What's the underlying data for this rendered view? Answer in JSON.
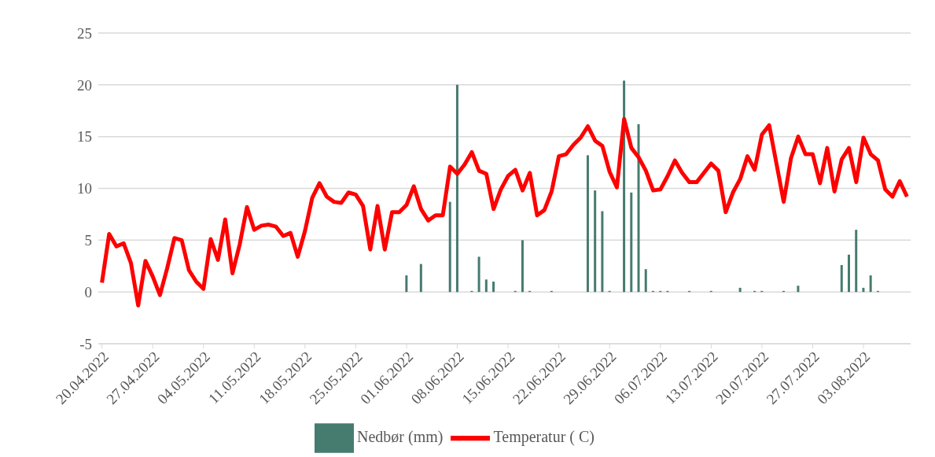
{
  "chart_data": {
    "type": "line",
    "x": [
      "2022-04-20",
      "2022-04-21",
      "2022-04-22",
      "2022-04-23",
      "2022-04-24",
      "2022-04-25",
      "2022-04-26",
      "2022-04-27",
      "2022-04-28",
      "2022-04-29",
      "2022-04-30",
      "2022-05-01",
      "2022-05-02",
      "2022-05-03",
      "2022-05-04",
      "2022-05-05",
      "2022-05-06",
      "2022-05-07",
      "2022-05-08",
      "2022-05-09",
      "2022-05-10",
      "2022-05-11",
      "2022-05-12",
      "2022-05-13",
      "2022-05-14",
      "2022-05-15",
      "2022-05-16",
      "2022-05-17",
      "2022-05-18",
      "2022-05-19",
      "2022-05-20",
      "2022-05-21",
      "2022-05-22",
      "2022-05-23",
      "2022-05-24",
      "2022-05-25",
      "2022-05-26",
      "2022-05-27",
      "2022-05-28",
      "2022-05-29",
      "2022-05-30",
      "2022-05-31",
      "2022-06-01",
      "2022-06-02",
      "2022-06-03",
      "2022-06-04",
      "2022-06-05",
      "2022-06-06",
      "2022-06-07",
      "2022-06-08",
      "2022-06-09",
      "2022-06-10",
      "2022-06-11",
      "2022-06-12",
      "2022-06-13",
      "2022-06-14",
      "2022-06-15",
      "2022-06-16",
      "2022-06-17",
      "2022-06-18",
      "2022-06-19",
      "2022-06-20",
      "2022-06-21",
      "2022-06-22",
      "2022-06-23",
      "2022-06-24",
      "2022-06-25",
      "2022-06-26",
      "2022-06-27",
      "2022-06-28",
      "2022-06-29",
      "2022-06-30",
      "2022-07-01",
      "2022-07-02",
      "2022-07-03",
      "2022-07-04",
      "2022-07-05",
      "2022-07-06",
      "2022-07-07",
      "2022-07-08",
      "2022-07-09",
      "2022-07-10",
      "2022-07-11",
      "2022-07-12",
      "2022-07-13",
      "2022-07-14",
      "2022-07-15",
      "2022-07-16",
      "2022-07-17",
      "2022-07-18",
      "2022-07-19",
      "2022-07-20",
      "2022-07-21",
      "2022-07-22",
      "2022-07-23",
      "2022-07-24",
      "2022-07-25",
      "2022-07-26",
      "2022-07-27",
      "2022-07-28",
      "2022-07-29",
      "2022-07-30",
      "2022-07-31",
      "2022-08-01",
      "2022-08-02",
      "2022-08-03",
      "2022-08-04",
      "2022-08-05",
      "2022-08-06",
      "2022-08-07",
      "2022-08-08",
      "2022-08-09"
    ],
    "series": [
      {
        "name": "Nedbør (mm)",
        "type": "bar",
        "color": "#467b70",
        "values": [
          0,
          0,
          0,
          0,
          0,
          0,
          0,
          0,
          0,
          0,
          0,
          0,
          0,
          0,
          0,
          0,
          0,
          0,
          0,
          0,
          0,
          0,
          0,
          0,
          0,
          0,
          0,
          0,
          0,
          0,
          0,
          0,
          0,
          0,
          0,
          0,
          0,
          0,
          0,
          0,
          0,
          0,
          1.6,
          0,
          2.7,
          0,
          0,
          0,
          8.7,
          20.0,
          0,
          0.1,
          3.4,
          1.2,
          1.0,
          0,
          0,
          0.1,
          5.0,
          0.1,
          0,
          0,
          0.1,
          0,
          0,
          0,
          0,
          13.2,
          9.8,
          7.8,
          0.1,
          0,
          20.4,
          9.6,
          16.2,
          2.2,
          0.1,
          0.1,
          0.1,
          0,
          0,
          0.1,
          0,
          0,
          0.1,
          0,
          0,
          0,
          0.4,
          0,
          0.1,
          0.1,
          0,
          0,
          0.1,
          0,
          0.6,
          0,
          0,
          0,
          0,
          0,
          2.6,
          3.6,
          6.0,
          0.4,
          1.6,
          0.1,
          0,
          0,
          0,
          0
        ]
      },
      {
        "name": "Temperatur ( C)",
        "color": "#ff0000",
        "values": [
          0.9,
          5.6,
          4.4,
          4.7,
          2.8,
          -1.3,
          3.0,
          1.5,
          -0.3,
          2.3,
          5.2,
          5.0,
          2.1,
          1.0,
          0.3,
          5.1,
          3.1,
          7.0,
          1.8,
          4.6,
          8.2,
          6.0,
          6.4,
          6.5,
          6.3,
          5.4,
          5.7,
          3.4,
          5.9,
          9.1,
          10.5,
          9.2,
          8.7,
          8.6,
          9.6,
          9.4,
          8.3,
          4.1,
          8.3,
          4.1,
          7.7,
          7.7,
          8.4,
          10.2,
          8.0,
          6.9,
          7.4,
          7.4,
          12.1,
          11.4,
          12.3,
          13.5,
          11.7,
          11.4,
          8.0,
          9.9,
          11.2,
          11.8,
          9.8,
          11.5,
          7.4,
          7.9,
          9.7,
          13.1,
          13.3,
          14.2,
          14.9,
          16.0,
          14.6,
          14.1,
          11.6,
          10.1,
          16.7,
          13.9,
          13.0,
          11.7,
          9.8,
          9.9,
          11.2,
          12.7,
          11.5,
          10.6,
          10.6,
          11.5,
          12.4,
          11.7,
          7.7,
          9.6,
          10.9,
          13.1,
          11.8,
          15.2,
          16.1,
          12.4,
          8.7,
          12.9,
          15.0,
          13.3,
          13.3,
          10.5,
          13.9,
          9.7,
          12.8,
          13.9,
          10.6,
          14.9,
          13.3,
          12.7,
          9.9,
          9.2,
          10.7,
          9.2
        ]
      }
    ],
    "xlim": [
      "2022-04-19T12:00",
      "2022-08-09T12:00"
    ],
    "xticks": [
      {
        "value": "2022-04-20",
        "label": "20.04.2022"
      },
      {
        "value": "2022-04-27",
        "label": "27.04.2022"
      },
      {
        "value": "2022-05-04",
        "label": "04.05.2022"
      },
      {
        "value": "2022-05-11",
        "label": "11.05.2022"
      },
      {
        "value": "2022-05-18",
        "label": "18.05.2022"
      },
      {
        "value": "2022-05-25",
        "label": "25.05.2022"
      },
      {
        "value": "2022-06-01",
        "label": "01.06.2022"
      },
      {
        "value": "2022-06-08",
        "label": "08.06.2022"
      },
      {
        "value": "2022-06-15",
        "label": "15.06.2022"
      },
      {
        "value": "2022-06-22",
        "label": "22.06.2022"
      },
      {
        "value": "2022-06-29",
        "label": "29.06.2022"
      },
      {
        "value": "2022-07-06",
        "label": "06.07.2022"
      },
      {
        "value": "2022-07-13",
        "label": "13.07.2022"
      },
      {
        "value": "2022-07-20",
        "label": "20.07.2022"
      },
      {
        "value": "2022-07-27",
        "label": "27.07.2022"
      },
      {
        "value": "2022-08-03",
        "label": "03.08.2022"
      }
    ],
    "ylim": [
      -5,
      25
    ],
    "yticks": [
      -5,
      0,
      5,
      10,
      15,
      20,
      25
    ],
    "grid": "y",
    "legend": "bottom",
    "marker": "none"
  }
}
